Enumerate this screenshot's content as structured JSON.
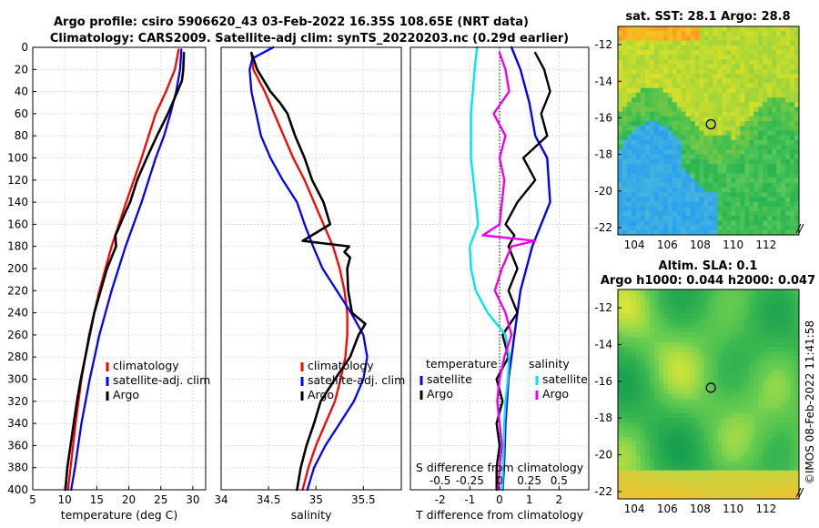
{
  "title": {
    "line1": "Argo profile: csiro 5906620_43 03-Feb-2022 16.35S 108.65E (NRT data)",
    "line2": "Climatology: CARS2009. Satellite-adj clim: synTS_20220203.nc (0.29d earlier)"
  },
  "colors": {
    "climatology": "#ff0000",
    "satellite": "#0000ff",
    "argo": "#000000",
    "salinity_sat": "#00e5ee",
    "salinity_argo": "#ee00ee"
  },
  "watermark": "©IMOS 08-Feb-2022 11:41:58",
  "chart_data": [
    {
      "type": "line",
      "name": "temperature",
      "xlabel": "temperature (deg C)",
      "xlim": [
        5,
        32
      ],
      "xticks": [
        5,
        10,
        15,
        20,
        25,
        30
      ],
      "ylim": [
        0,
        400
      ],
      "yticks": [
        0,
        20,
        40,
        60,
        80,
        100,
        120,
        140,
        160,
        180,
        200,
        220,
        240,
        260,
        280,
        300,
        320,
        340,
        360,
        380,
        400
      ],
      "legend": [
        "climatology",
        "satellite-adj. clim",
        "Argo"
      ],
      "series": [
        {
          "name": "climatology",
          "color": "#ff0000",
          "depth": [
            2,
            20,
            40,
            60,
            100,
            140,
            180,
            220,
            260,
            300,
            340,
            380,
            400
          ],
          "values": [
            27.8,
            27.2,
            25.8,
            24.2,
            22.0,
            19.6,
            17.3,
            15.4,
            13.8,
            12.6,
            11.7,
            10.9,
            10.5
          ]
        },
        {
          "name": "satellite-adj. clim",
          "color": "#0000ff",
          "depth": [
            2,
            20,
            40,
            60,
            80,
            100,
            140,
            180,
            220,
            260,
            300,
            340,
            380,
            400
          ],
          "values": [
            28.2,
            28.0,
            27.4,
            26.5,
            25.5,
            24.2,
            22.0,
            19.5,
            17.3,
            15.4,
            13.9,
            12.6,
            11.6,
            11.0
          ]
        },
        {
          "name": "Argo",
          "color": "#000000",
          "depth": [
            5,
            20,
            30,
            40,
            60,
            80,
            100,
            120,
            140,
            150,
            165,
            170,
            180,
            200,
            220,
            240,
            260,
            280,
            300,
            320,
            340,
            360,
            380,
            400
          ],
          "values": [
            28.6,
            28.5,
            28.3,
            27.6,
            26.1,
            24.4,
            22.8,
            21.3,
            20.2,
            19.4,
            18.3,
            17.9,
            18.0,
            16.6,
            15.6,
            14.6,
            13.9,
            13.2,
            12.5,
            11.9,
            11.4,
            10.9,
            10.4,
            10.1
          ]
        }
      ]
    },
    {
      "type": "line",
      "name": "salinity",
      "xlabel": "salinity",
      "xlim": [
        34,
        35.9
      ],
      "xticks": [
        34,
        34.5,
        35,
        35.5
      ],
      "ylim": [
        0,
        400
      ],
      "legend": [
        "climatology",
        "satellite-adj. clim",
        "Argo"
      ],
      "series": [
        {
          "name": "climatology",
          "color": "#ff0000",
          "depth": [
            5,
            20,
            40,
            60,
            80,
            100,
            120,
            140,
            160,
            180,
            200,
            220,
            240,
            260,
            280,
            300,
            320,
            340,
            360,
            380,
            400
          ],
          "values": [
            34.32,
            34.34,
            34.46,
            34.56,
            34.66,
            34.76,
            34.88,
            34.98,
            35.08,
            35.18,
            35.25,
            35.3,
            35.33,
            35.33,
            35.31,
            35.26,
            35.2,
            35.1,
            35.0,
            34.92,
            34.86
          ]
        },
        {
          "name": "satellite-adj. clim",
          "color": "#0000ff",
          "depth": [
            0,
            10,
            20,
            40,
            60,
            80,
            100,
            120,
            140,
            160,
            180,
            200,
            220,
            240,
            260,
            280,
            300,
            320,
            340,
            360,
            380,
            400
          ],
          "values": [
            34.55,
            34.33,
            34.3,
            34.32,
            34.37,
            34.42,
            34.52,
            34.65,
            34.8,
            34.88,
            34.97,
            35.07,
            35.22,
            35.37,
            35.5,
            35.54,
            35.5,
            35.4,
            35.25,
            35.1,
            34.98,
            34.91
          ]
        },
        {
          "name": "Argo",
          "color": "#000000",
          "depth": [
            5,
            20,
            40,
            50,
            60,
            80,
            100,
            120,
            140,
            160,
            175,
            180,
            185,
            190,
            200,
            220,
            240,
            250,
            260,
            280,
            300,
            320,
            340,
            360,
            380,
            400
          ],
          "values": [
            34.32,
            34.38,
            34.52,
            34.62,
            34.7,
            34.78,
            34.88,
            34.96,
            35.08,
            35.15,
            34.86,
            35.35,
            35.3,
            35.36,
            35.33,
            35.34,
            35.38,
            35.52,
            35.45,
            35.36,
            35.2,
            35.05,
            34.98,
            34.9,
            34.84,
            34.8
          ]
        }
      ]
    },
    {
      "type": "line",
      "name": "difference",
      "xlabel": "T difference from climatology",
      "xlabel_top": "S difference from climatology",
      "xlim": [
        -3,
        3
      ],
      "xticks": [
        -2,
        -1,
        0,
        1,
        2
      ],
      "xticks_s": [
        "-0.5",
        "-0.25",
        "0",
        "0.25",
        "0.5"
      ],
      "ylim": [
        0,
        400
      ],
      "legend_headers": [
        "temperature",
        "salinity"
      ],
      "legend": [
        "satellite",
        "Argo",
        "satellite",
        "Argo"
      ],
      "series": [
        {
          "name": "T satellite",
          "color": "#0000ff",
          "depth": [
            0,
            20,
            50,
            80,
            100,
            140,
            180,
            220,
            260,
            300,
            340,
            380,
            400
          ],
          "values": [
            0.4,
            0.7,
            1.0,
            1.2,
            1.6,
            1.7,
            1.1,
            0.7,
            0.5,
            0.3,
            0.2,
            0.15,
            0.1
          ]
        },
        {
          "name": "T Argo",
          "color": "#000000",
          "depth": [
            5,
            20,
            40,
            60,
            80,
            100,
            120,
            140,
            160,
            170,
            180,
            200,
            220,
            240,
            260,
            280,
            300,
            320,
            340,
            360,
            380,
            400
          ],
          "values": [
            1.2,
            1.5,
            1.7,
            1.4,
            1.6,
            0.8,
            1.2,
            0.6,
            0.2,
            0.5,
            0.3,
            0.6,
            0.3,
            0.6,
            0.1,
            0.3,
            -0.1,
            0.1,
            -0.1,
            0.0,
            -0.1,
            -0.1
          ]
        },
        {
          "name": "S satellite",
          "color": "#00e5ee",
          "depth": [
            0,
            20,
            60,
            100,
            140,
            160,
            180,
            200,
            220,
            240,
            260,
            280,
            300,
            320,
            340,
            380,
            400
          ],
          "values": [
            -0.19,
            -0.21,
            -0.24,
            -0.24,
            -0.2,
            -0.18,
            -0.25,
            -0.24,
            -0.2,
            -0.1,
            0.05,
            0.08,
            0.07,
            0.05,
            0.04,
            0.03,
            0.02
          ]
        },
        {
          "name": "S Argo",
          "color": "#ee00ee",
          "depth": [
            5,
            20,
            40,
            60,
            80,
            100,
            120,
            140,
            160,
            170,
            175,
            180,
            200,
            220,
            240,
            260,
            280,
            300,
            320,
            340,
            360,
            380,
            400
          ],
          "values": [
            0.0,
            0.05,
            0.08,
            -0.05,
            0.05,
            0.0,
            0.04,
            0.02,
            0.0,
            -0.14,
            0.3,
            0.1,
            0.02,
            -0.04,
            0.05,
            0.1,
            0.04,
            0.0,
            -0.02,
            0.0,
            0.02,
            0.0,
            -0.01
          ]
        }
      ]
    },
    {
      "type": "heatmap",
      "name": "sst_map",
      "title": "sat. SST: 28.1 Argo: 28.8",
      "xticks": [
        104,
        106,
        108,
        110,
        112
      ],
      "yticks": [
        -12,
        -14,
        -16,
        -18,
        -20,
        -22
      ],
      "xlim": [
        103,
        114
      ],
      "ylim": [
        -22.4,
        -11
      ],
      "argo_position": [
        108.65,
        -16.35
      ]
    },
    {
      "type": "heatmap",
      "name": "sla_map",
      "title": "Altim. SLA: 0.1",
      "subtitle": "Argo h1000: 0.044 h2000: 0.047",
      "xticks": [
        104,
        106,
        108,
        110,
        112
      ],
      "yticks": [
        -12,
        -14,
        -16,
        -18,
        -20,
        -22
      ],
      "xlim": [
        103,
        114
      ],
      "ylim": [
        -22.4,
        -11
      ],
      "argo_position": [
        108.65,
        -16.35
      ]
    }
  ]
}
